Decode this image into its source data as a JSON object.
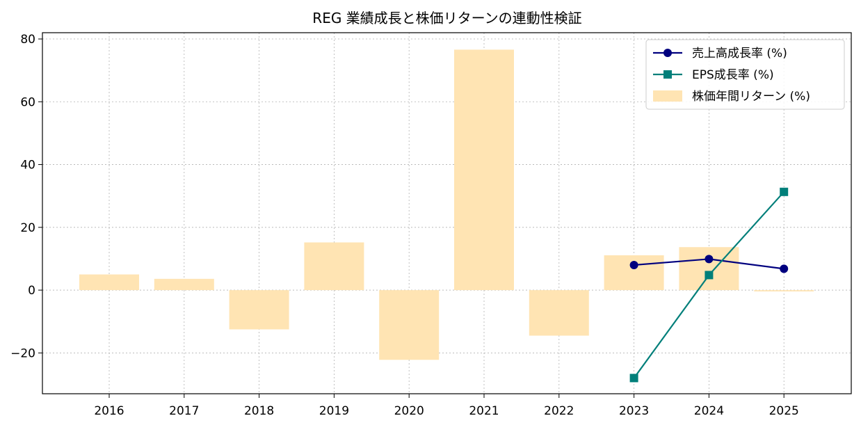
{
  "chart_data": {
    "type": "bar",
    "title": "REG 業績成長と株価リターンの連動性検証",
    "xlabel": "",
    "ylabel": "",
    "categories": [
      "2016",
      "2017",
      "2018",
      "2019",
      "2020",
      "2021",
      "2022",
      "2023",
      "2024",
      "2025"
    ],
    "ylim": [
      -33,
      82
    ],
    "yticks": [
      -20,
      0,
      20,
      40,
      60,
      80
    ],
    "ytick_labels": [
      "−20",
      "0",
      "20",
      "40",
      "60",
      "80"
    ],
    "grid": true,
    "legend_position": "top-right",
    "series": [
      {
        "name": "売上高成長率 (%)",
        "kind": "line",
        "marker": "circle",
        "color": "#00007f",
        "values": [
          null,
          null,
          null,
          null,
          null,
          null,
          null,
          8.0,
          9.9,
          6.8
        ]
      },
      {
        "name": "EPS成長率 (%)",
        "kind": "line",
        "marker": "square",
        "color": "#007f7a",
        "values": [
          null,
          null,
          null,
          null,
          null,
          null,
          null,
          -28.0,
          4.8,
          31.3
        ]
      },
      {
        "name": "株価年間リターン (%)",
        "kind": "bar",
        "color": "#ffe4b3",
        "values": [
          5.0,
          3.6,
          -12.5,
          15.2,
          -22.2,
          76.6,
          -14.5,
          11.1,
          13.7,
          -0.4
        ]
      }
    ]
  }
}
